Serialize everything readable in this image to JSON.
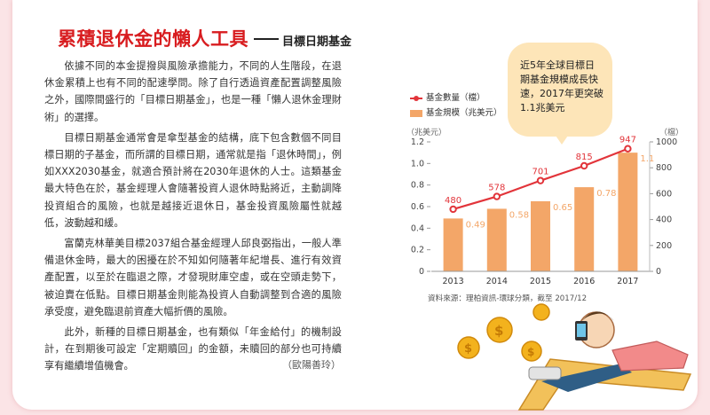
{
  "article": {
    "title": "累積退休金的懶人工具",
    "subtitle": "目標日期基金",
    "paragraphs": [
      "依據不同的本金提撥與風險承擔能力，不同的人生階段，在退休金累積上也有不同的配速學問。除了自行透過資產配置調整風險之外，國際間盛行的「目標日期基金」，也是一種「懶人退休金理財術」的選擇。",
      "目標日期基金通常會是傘型基金的結構，底下包含數個不同目標日期的子基金，而所謂的目標日期，通常就是指「退休時間」，例如XXX2030基金，就適合預計將在2030年退休的人士。這類基金最大特色在於，基金經理人會隨著投資人退休時點將近，主動調降投資組合的風險，也就是越接近退休日，基金投資風險屬性就越低，波動越和緩。",
      "富蘭克林華美目標2037組合基金經理人邱良弼指出，一般人準備退休金時，最大的困擾在於不知如何隨著年紀增長、進行有效資產配置，以至於在臨退之際，才發現財庫空虛，或在空頭走勢下，被迫賣在低點。目標日期基金則能為投資人自動調整到合適的風險承受度，避免臨退前資產大幅折價的風險。",
      "此外，新種的目標日期基金，也有類似「年金給付」的機制設計，在到期後可設定「定期贖回」的金額，未贖回的部分也可持續享有繼續增值機會。"
    ],
    "author": "（歐陽善玲）"
  },
  "callout": {
    "text": "近5年全球目標日期基金規模成長快速，2017年更突破1.1兆美元"
  },
  "chart_data": {
    "type": "bar",
    "categories": [
      "2013",
      "2014",
      "2015",
      "2016",
      "2017"
    ],
    "series": [
      {
        "name": "基金數量（檔）",
        "kind": "line",
        "axis": "right",
        "values": [
          480,
          578,
          701,
          815,
          947
        ]
      },
      {
        "name": "基金規模（兆美元）",
        "kind": "bar",
        "axis": "left",
        "values": [
          0.49,
          0.58,
          0.65,
          0.78,
          1.1
        ]
      }
    ],
    "y_left": {
      "label": "（兆美元）",
      "ticks": [
        "0",
        "0.2",
        "0.4",
        "0.6",
        "0.8",
        "1.0",
        "1.2"
      ],
      "range": [
        0,
        1.2
      ]
    },
    "y_right": {
      "label": "（檔）",
      "ticks": [
        "0",
        "200",
        "400",
        "600",
        "800",
        "1000"
      ],
      "range": [
        0,
        1000
      ]
    },
    "source": "資料來源：理柏資訊-環球分類，截至 2017/12",
    "colors": {
      "line": "#e2343a",
      "bar": "#f3a668",
      "bar_label": "#f3a668"
    }
  }
}
